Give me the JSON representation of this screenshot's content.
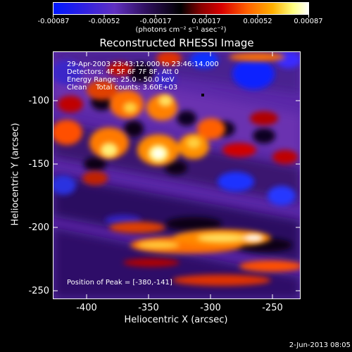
{
  "colorbar": {
    "ticks": [
      "-0.00087",
      "-0.00052",
      "-0.00017",
      "0.00017",
      "0.00052",
      "0.00087"
    ],
    "units_label": "(photons cm⁻² s⁻¹ asec⁻²)"
  },
  "title": "Reconstructed RHESSI Image",
  "info": {
    "line1": "29-Apr-2003 23:43:12.000 to 23:46:14.000",
    "line2": "Detectors: 4F 5F 6F 7F 8F, Att 0",
    "line3": "Energy Range: 25.0 - 50.0 keV",
    "line4": "Clean    Total counts: 3.60E+03",
    "peak": "Position of Peak = [-380,-141]"
  },
  "axes": {
    "xlabel": "Heliocentric X (arcsec)",
    "ylabel": "Heliocentric Y (arcsec)",
    "xticks": [
      "-400",
      "-350",
      "-300",
      "-250"
    ],
    "yticks": [
      "-100",
      "-150",
      "-200",
      "-250"
    ],
    "xrange": [
      -427,
      -233
    ],
    "yrange": [
      -253,
      -53
    ]
  },
  "footer": {
    "timestamp": "2-Jun-2013 08:05"
  },
  "colors": {
    "background": "#000000",
    "foreground": "#ffffff",
    "colormap": [
      "#0018ff",
      "#6030c0",
      "#000000",
      "#d80000",
      "#ff8000",
      "#ffffff"
    ]
  }
}
